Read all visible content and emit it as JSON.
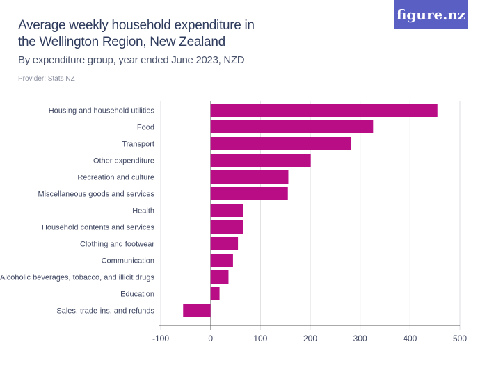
{
  "header": {
    "title": "Average weekly household expenditure in the Wellington Region, New Zealand",
    "subtitle": "By expenditure group, year ended June 2023, NZD",
    "provider": "Provider: Stats NZ",
    "logo": "figure.nz"
  },
  "colors": {
    "bar": "#b80d85",
    "grid": "#dcdce0",
    "axis": "#555",
    "label": "#3d4560"
  },
  "chart_data": {
    "type": "bar",
    "orientation": "horizontal",
    "categories": [
      "Housing and household utilities",
      "Food",
      "Transport",
      "Other expenditure",
      "Recreation and culture",
      "Miscellaneous goods and services",
      "Health",
      "Household contents and services",
      "Clothing and footwear",
      "Communication",
      "Alcoholic beverages, tobacco, and illicit drugs",
      "Education",
      "Sales, trade-ins, and refunds"
    ],
    "values": [
      455,
      326,
      281,
      201,
      156,
      155,
      66,
      66,
      55,
      45,
      36,
      18,
      -55
    ],
    "xlim": [
      -100,
      500
    ],
    "ticks": [
      "-100",
      "0",
      "100",
      "200",
      "300",
      "400",
      "500"
    ],
    "tick_values": [
      -100,
      0,
      100,
      200,
      300,
      400,
      500
    ],
    "grid": true
  }
}
